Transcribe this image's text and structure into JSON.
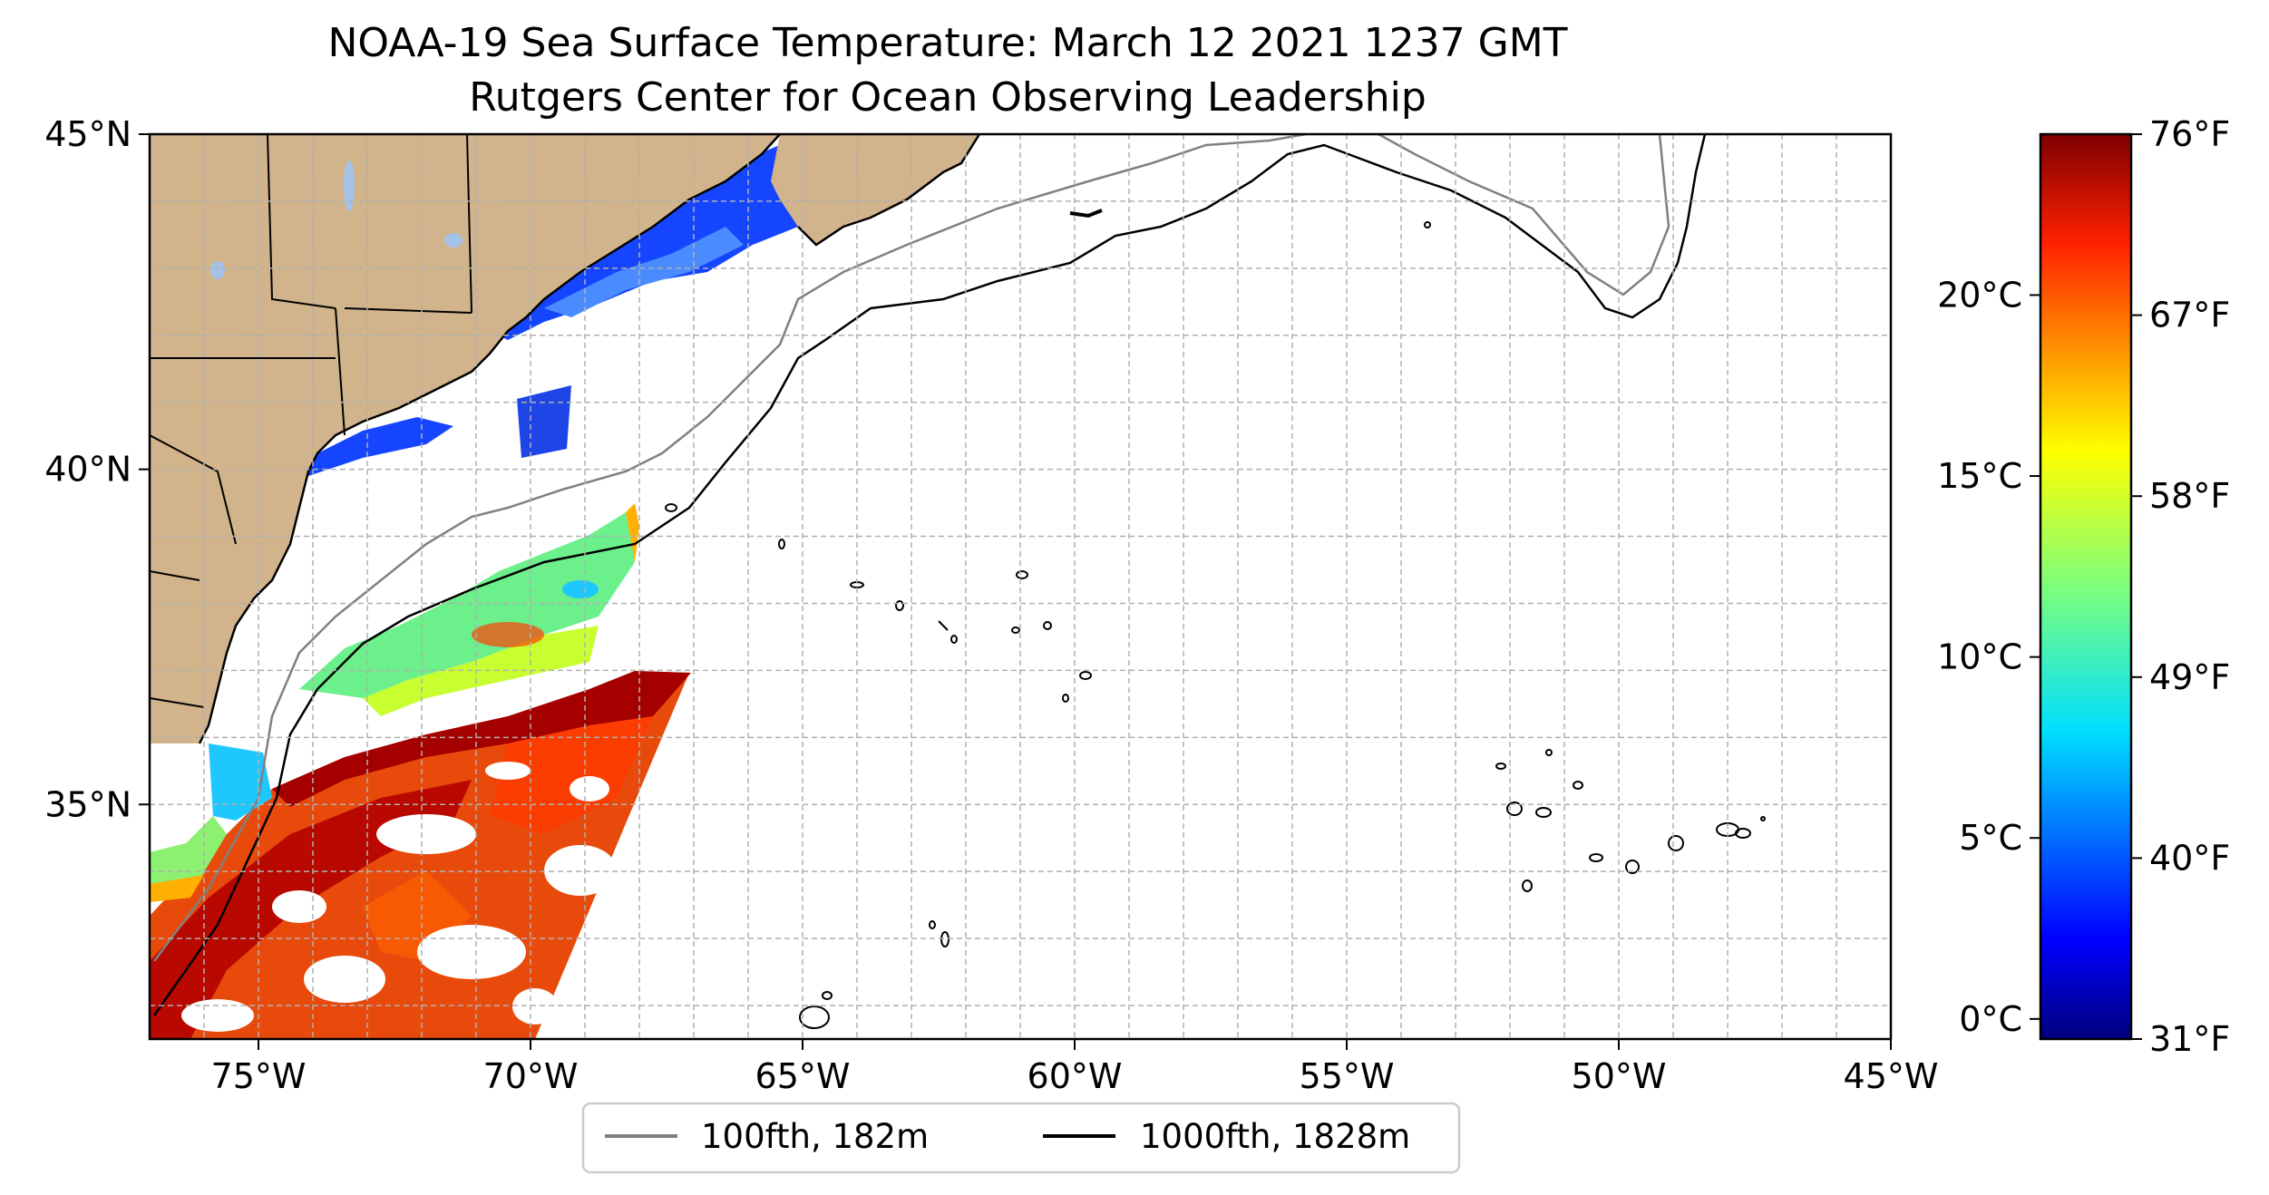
{
  "title": {
    "line1": "NOAA-19 Sea Surface Temperature: March 12 2021 1237 GMT",
    "line2": "Rutgers Center for Ocean Observing Leadership"
  },
  "map": {
    "lon_range": [
      -77,
      -45
    ],
    "lat_range": [
      31.5,
      45
    ],
    "x_ticks": [
      {
        "lon": -75,
        "label": "75°W"
      },
      {
        "lon": -70,
        "label": "70°W"
      },
      {
        "lon": -65,
        "label": "65°W"
      },
      {
        "lon": -60,
        "label": "60°W"
      },
      {
        "lon": -55,
        "label": "55°W"
      },
      {
        "lon": -50,
        "label": "50°W"
      },
      {
        "lon": -45,
        "label": "45°W"
      }
    ],
    "y_ticks": [
      {
        "lat": 45,
        "label": "45°N"
      },
      {
        "lat": 40,
        "label": "40°N"
      },
      {
        "lat": 35,
        "label": "35°N"
      }
    ],
    "grid": true,
    "land_color": "#d2b48c",
    "lake_color": "#a4c2e8"
  },
  "legend": {
    "placement": "bottom-center",
    "items": [
      {
        "label": "100fth, 182m",
        "color": "#808080"
      },
      {
        "label": "1000fth, 1828m",
        "color": "#000000"
      }
    ]
  },
  "colorbar": {
    "colormap": "jet",
    "range_f": [
      31,
      76
    ],
    "celsius_ticks": [
      {
        "c": 20,
        "label": "20°C"
      },
      {
        "c": 15,
        "label": "15°C"
      },
      {
        "c": 10,
        "label": "10°C"
      },
      {
        "c": 5,
        "label": "5°C"
      },
      {
        "c": 0,
        "label": "0°C"
      }
    ],
    "fahrenheit_ticks": [
      {
        "f": 76,
        "label": "76°F"
      },
      {
        "f": 67,
        "label": "67°F"
      },
      {
        "f": 58,
        "label": "58°F"
      },
      {
        "f": 49,
        "label": "49°F"
      },
      {
        "f": 40,
        "label": "40°F"
      },
      {
        "f": 31,
        "label": "31°F"
      }
    ]
  }
}
